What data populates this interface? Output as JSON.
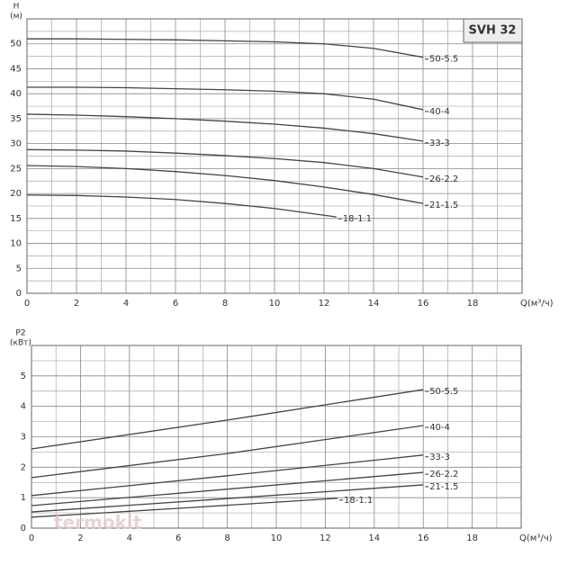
{
  "watermark": "termokit",
  "chart_data": [
    {
      "type": "line",
      "badge": "SVH 32",
      "y_label": [
        "H",
        "(м)"
      ],
      "x_label": "Q(м³/ч)",
      "xlim": [
        0,
        20
      ],
      "xticks": [
        0,
        2,
        4,
        6,
        8,
        10,
        12,
        14,
        16,
        18
      ],
      "ylim": [
        0,
        55
      ],
      "yticks": [
        0,
        5,
        10,
        15,
        20,
        25,
        30,
        35,
        40,
        45,
        50
      ],
      "grid": true,
      "series": [
        {
          "name": "50-5.5",
          "color": "#444444",
          "x": [
            0,
            2,
            4,
            6,
            8,
            10,
            12,
            14,
            16
          ],
          "values": [
            51,
            51,
            50.9,
            50.8,
            50.6,
            50.4,
            50,
            49.1,
            47.3
          ]
        },
        {
          "name": "40-4",
          "color": "#444444",
          "x": [
            0,
            2,
            4,
            6,
            8,
            10,
            12,
            14,
            16
          ],
          "values": [
            41.3,
            41.3,
            41.2,
            41,
            40.8,
            40.5,
            40,
            38.9,
            36.8
          ]
        },
        {
          "name": "33-3",
          "color": "#444444",
          "x": [
            0,
            2,
            4,
            6,
            8,
            10,
            12,
            14,
            16
          ],
          "values": [
            35.9,
            35.7,
            35.4,
            35,
            34.5,
            33.9,
            33.1,
            32,
            30.5
          ]
        },
        {
          "name": "26-2.2",
          "color": "#444444",
          "x": [
            0,
            2,
            4,
            6,
            8,
            10,
            12,
            14,
            16
          ],
          "values": [
            28.8,
            28.7,
            28.5,
            28.1,
            27.6,
            27,
            26.2,
            25,
            23.3
          ]
        },
        {
          "name": "21-1.5",
          "color": "#444444",
          "x": [
            0,
            2,
            4,
            6,
            8,
            10,
            12,
            14,
            16
          ],
          "values": [
            25.6,
            25.4,
            25,
            24.4,
            23.6,
            22.6,
            21.3,
            19.8,
            18
          ]
        },
        {
          "name": "18-1.1",
          "color": "#444444",
          "x": [
            0,
            2,
            4,
            6,
            8,
            10,
            12.5
          ],
          "values": [
            19.7,
            19.6,
            19.3,
            18.8,
            18,
            17,
            15.3
          ]
        }
      ]
    },
    {
      "type": "line",
      "y_label": [
        "P2",
        "(кВт)"
      ],
      "x_label": "Q(м³/ч)",
      "xlim": [
        0,
        20
      ],
      "xticks": [
        0,
        2,
        4,
        6,
        8,
        10,
        12,
        14,
        16,
        18
      ],
      "ylim": [
        0,
        6
      ],
      "yticks": [
        0,
        1,
        2,
        3,
        4,
        5
      ],
      "grid": true,
      "series": [
        {
          "name": "50-5.5",
          "color": "#444444",
          "x": [
            0,
            8,
            16
          ],
          "values": [
            2.6,
            3.55,
            4.55
          ]
        },
        {
          "name": "40-4",
          "color": "#444444",
          "x": [
            0,
            8,
            16
          ],
          "values": [
            1.66,
            2.45,
            3.37
          ]
        },
        {
          "name": "33-3",
          "color": "#444444",
          "x": [
            0,
            8,
            16
          ],
          "values": [
            1.07,
            1.72,
            2.4
          ]
        },
        {
          "name": "26-2.2",
          "color": "#444444",
          "x": [
            0,
            8,
            16
          ],
          "values": [
            0.74,
            1.28,
            1.83
          ]
        },
        {
          "name": "21-1.5",
          "color": "#444444",
          "x": [
            0,
            8,
            16
          ],
          "values": [
            0.53,
            0.97,
            1.42
          ]
        },
        {
          "name": "18-1.1",
          "color": "#444444",
          "x": [
            0,
            6,
            12.5
          ],
          "values": [
            0.36,
            0.65,
            0.98
          ]
        }
      ]
    }
  ]
}
